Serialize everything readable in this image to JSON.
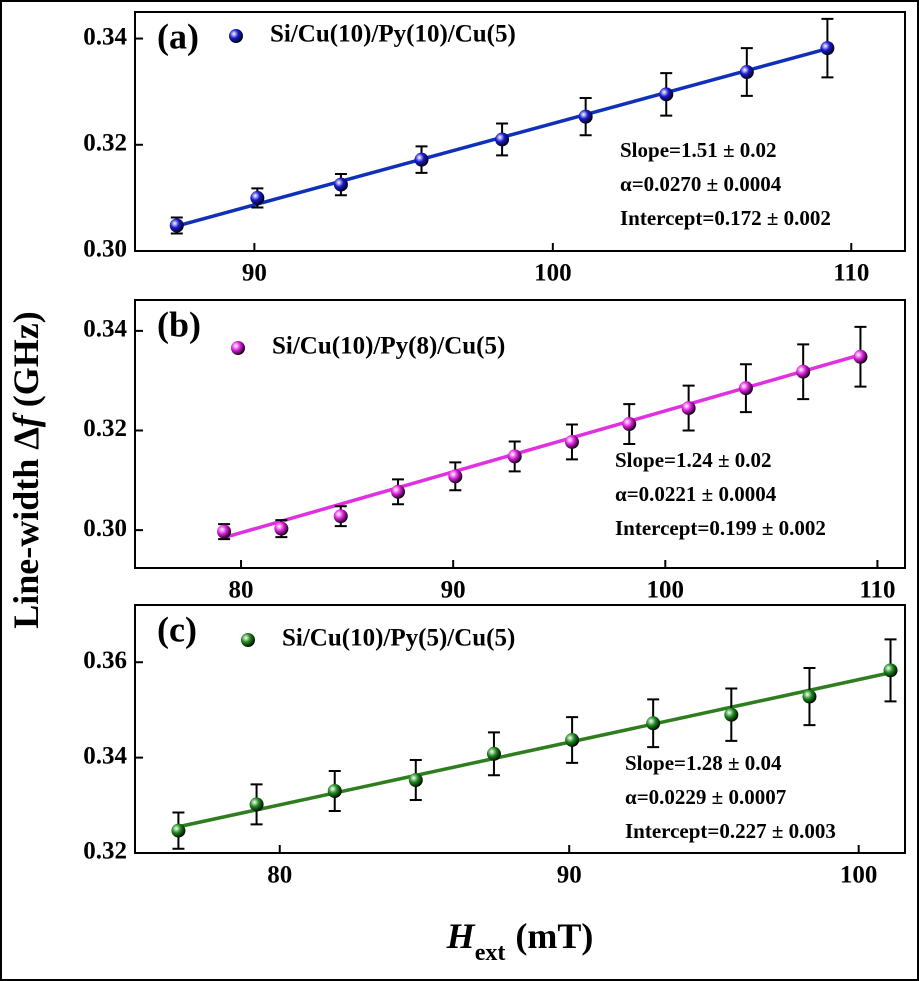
{
  "y_label": {
    "prefix": "Line-width Δ",
    "symbol": "f",
    "unit": "(GHz)"
  },
  "x_label": {
    "symbol": "H",
    "subscript": "ext",
    "unit": "(mT)"
  },
  "chart_data": [
    {
      "type": "scatter",
      "panel_label": "(a)",
      "xlim": [
        86,
        111.8
      ],
      "xticks": [
        90,
        100,
        110
      ],
      "ylim": [
        0.3,
        0.345
      ],
      "yticks": [
        {
          "value": 0.3,
          "label": "0.30"
        },
        0.32,
        0.34
      ],
      "series": [
        {
          "name": "Si/Cu(10)/Py(10)/Cu(5)",
          "color": "#1a1ad0",
          "x": [
            87.4,
            90.1,
            92.9,
            95.6,
            98.3,
            101.1,
            103.8,
            106.5,
            109.2
          ],
          "values": [
            0.3048,
            0.31,
            0.3125,
            0.3172,
            0.321,
            0.3253,
            0.3295,
            0.3337,
            0.3382
          ],
          "errors": [
            0.0015,
            0.0018,
            0.002,
            0.0025,
            0.003,
            0.0035,
            0.004,
            0.0045,
            0.0055
          ]
        }
      ],
      "fit": {
        "color": "#1030b8",
        "x": [
          87.4,
          109.2
        ],
        "values": [
          0.3047,
          0.3381
        ]
      },
      "annotations": [
        "Slope=1.51 ± 0.02",
        "α=0.0270 ± 0.0004",
        "Intercept=0.172 ± 0.002"
      ]
    },
    {
      "type": "scatter",
      "panel_label": "(b)",
      "xlim": [
        75,
        111.3
      ],
      "xticks": [
        80,
        90,
        100,
        110
      ],
      "ylim": [
        0.2924,
        0.3462
      ],
      "yticks": [
        {
          "value": 0.3,
          "label": "0.30"
        },
        0.32,
        0.34
      ],
      "series": [
        {
          "name": "Si/Cu(10)/Py(8)/Cu(5)",
          "color": "#e020e0",
          "x": [
            79.2,
            81.9,
            84.7,
            87.4,
            90.1,
            92.9,
            95.6,
            98.3,
            101.1,
            103.8,
            106.5,
            109.2
          ],
          "values": [
            0.2997,
            0.3003,
            0.3028,
            0.3077,
            0.3108,
            0.3148,
            0.3177,
            0.3213,
            0.3245,
            0.3285,
            0.3318,
            0.3348
          ],
          "errors": [
            0.0015,
            0.0017,
            0.002,
            0.0025,
            0.0028,
            0.003,
            0.0035,
            0.004,
            0.0045,
            0.0048,
            0.0055,
            0.006
          ]
        }
      ],
      "fit": {
        "color": "#e030e0",
        "x": [
          79.2,
          109.2
        ],
        "values": [
          0.2985,
          0.3352
        ]
      },
      "annotations": [
        "Slope=1.24 ± 0.02",
        "α=0.0221 ± 0.0004",
        "Intercept=0.199 ± 0.002"
      ]
    },
    {
      "type": "scatter",
      "panel_label": "(c)",
      "xlim": [
        75,
        101.6
      ],
      "xticks": [
        80,
        90,
        100
      ],
      "ylim": [
        0.32,
        0.372
      ],
      "yticks": [
        0.32,
        0.34,
        0.36
      ],
      "series": [
        {
          "name": "Si/Cu(10)/Py(5)/Cu(5)",
          "color": "#1e8a1e",
          "x": [
            76.5,
            79.2,
            81.9,
            84.7,
            87.4,
            90.1,
            92.9,
            95.6,
            98.3,
            101.1
          ],
          "values": [
            0.3247,
            0.3302,
            0.333,
            0.3353,
            0.3408,
            0.3437,
            0.3472,
            0.349,
            0.3528,
            0.3583
          ],
          "errors": [
            0.0038,
            0.0042,
            0.0042,
            0.0042,
            0.0045,
            0.0048,
            0.005,
            0.0055,
            0.006,
            0.0065
          ]
        }
      ],
      "fit": {
        "color": "#2e7d1e",
        "x": [
          76.5,
          101.1
        ],
        "values": [
          0.3255,
          0.3578
        ]
      },
      "annotations": [
        "Slope=1.28 ± 0.04",
        "α=0.0229 ± 0.0007",
        "Intercept=0.227 ± 0.003"
      ]
    }
  ]
}
